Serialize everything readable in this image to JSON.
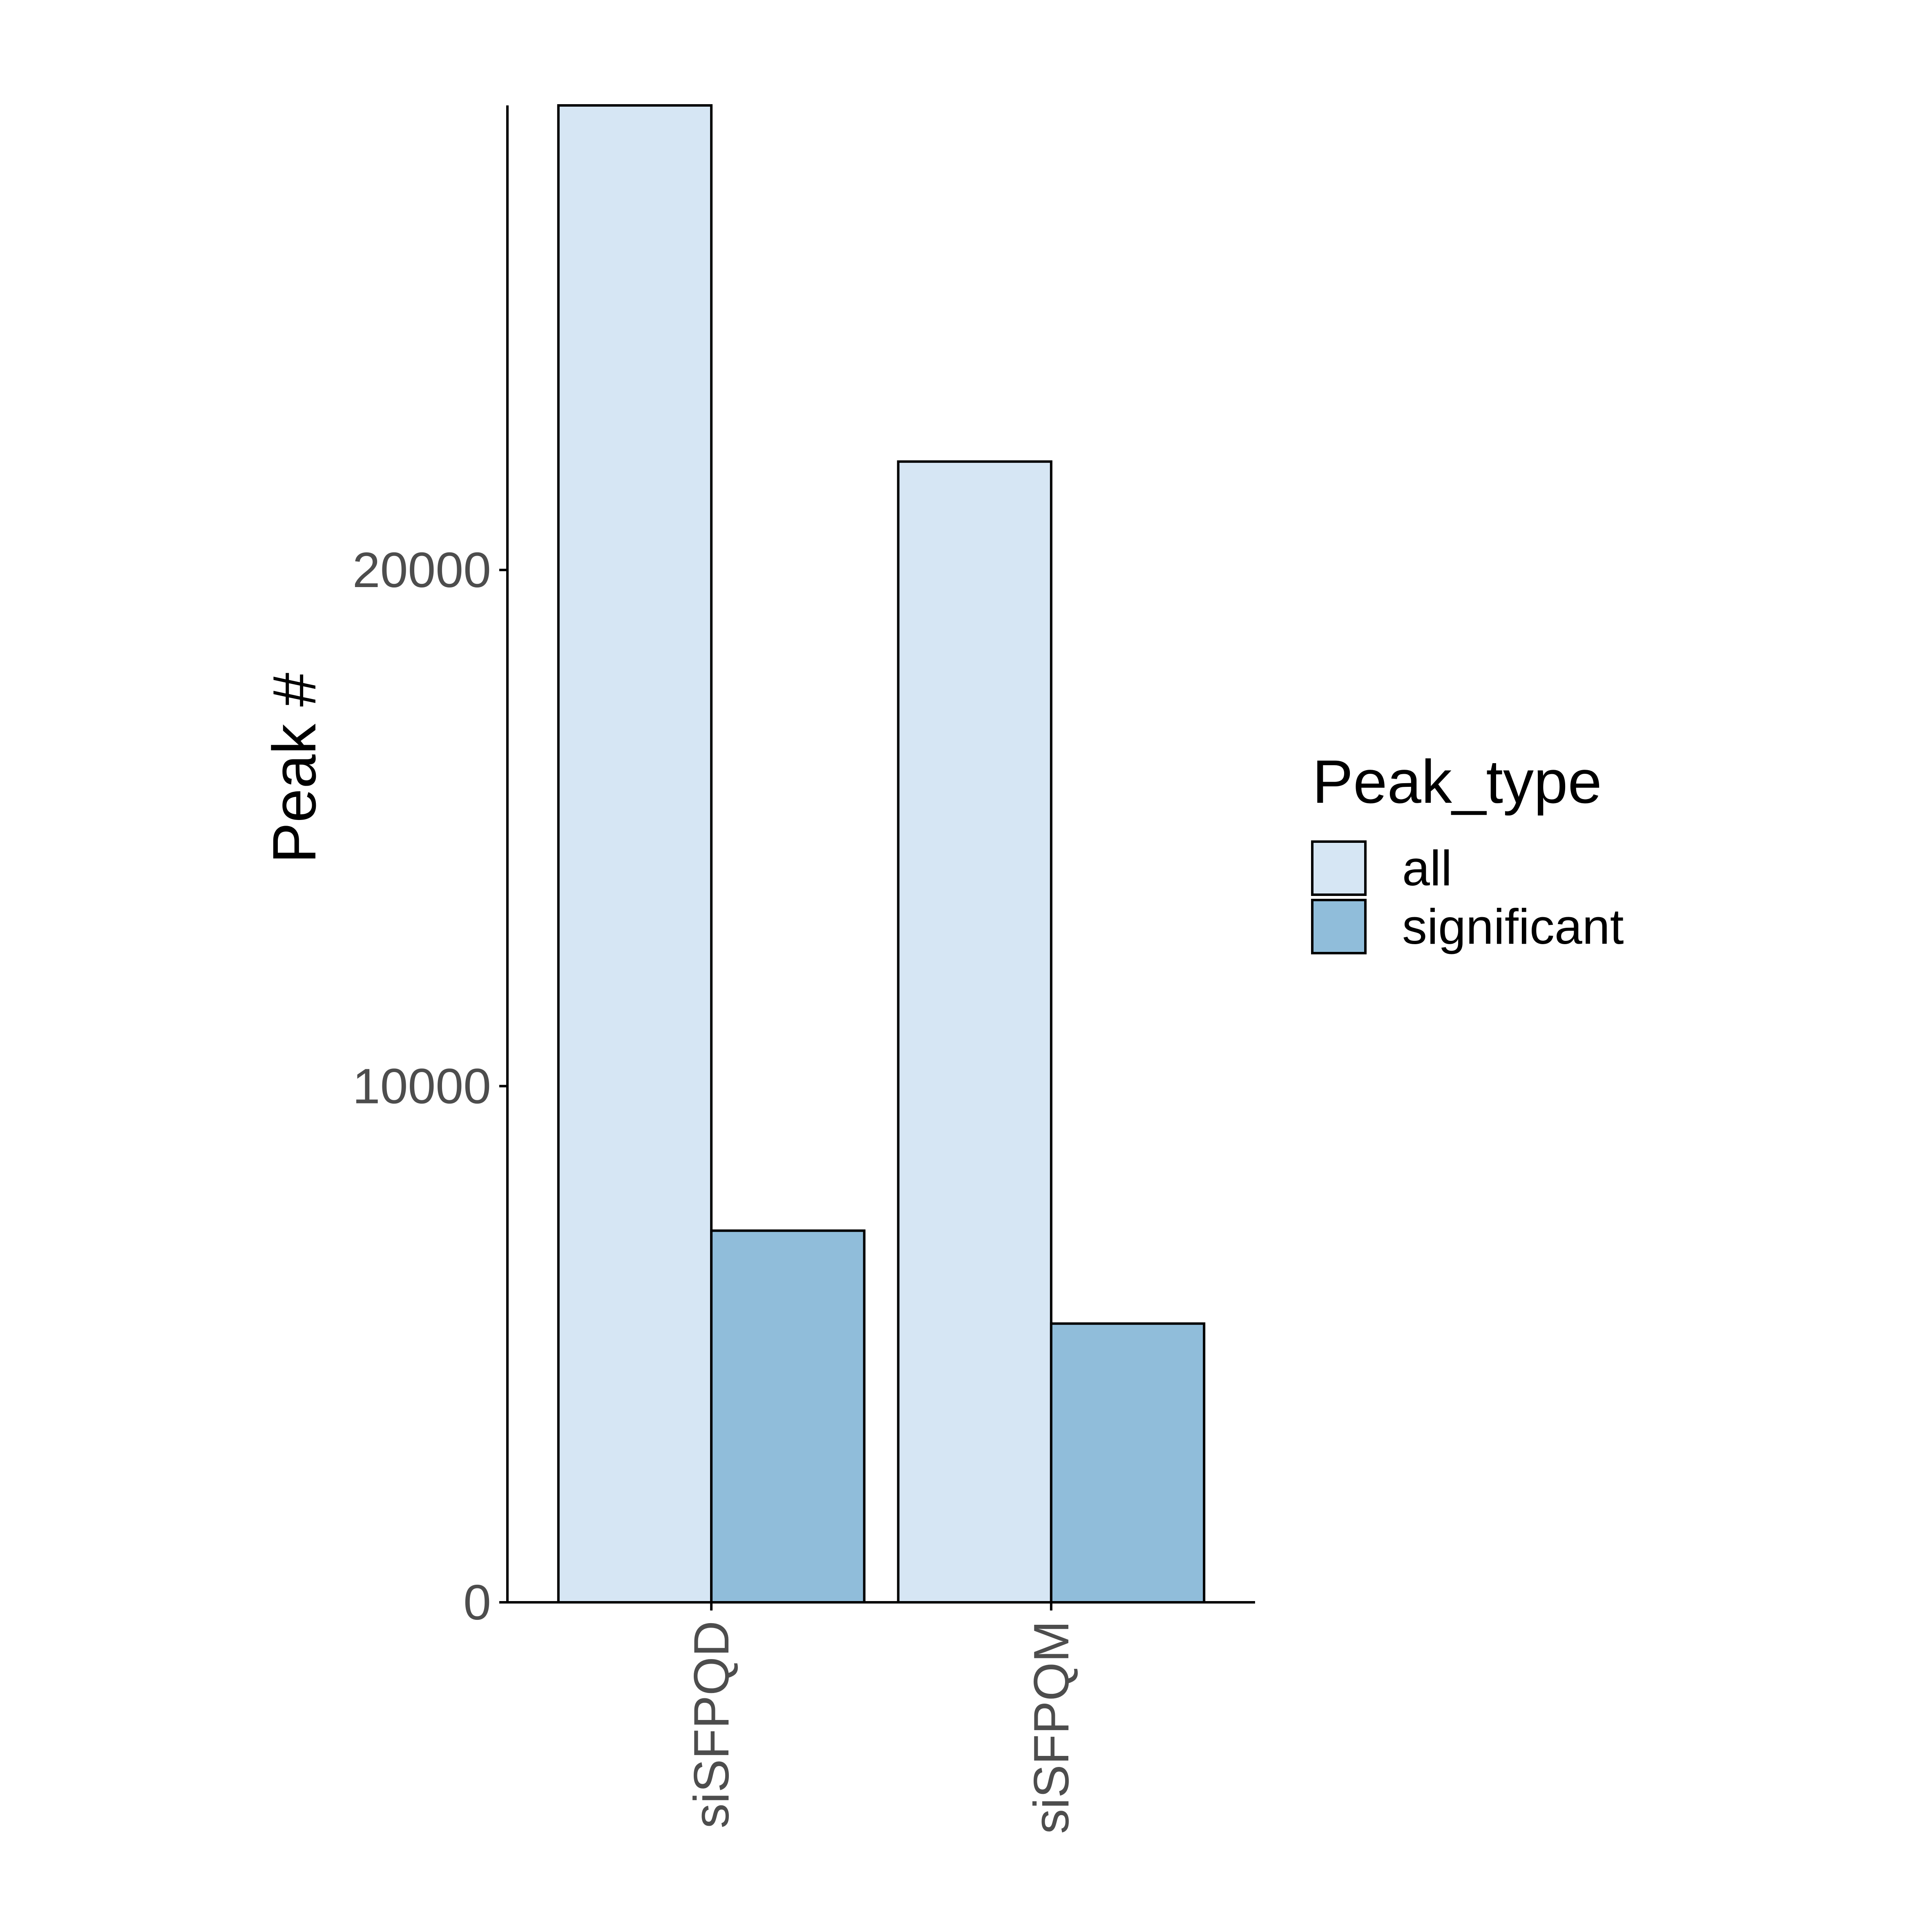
{
  "chart_data": {
    "type": "bar",
    "categories": [
      "siSFPQD",
      "siSFPQM"
    ],
    "series": [
      {
        "name": "all",
        "color": "#d6e6f4",
        "values": [
          29000,
          22100
        ]
      },
      {
        "name": "significant",
        "color": "#90bdda",
        "values": [
          7200,
          5400
        ]
      }
    ],
    "ylabel": "Peak #",
    "xlabel": "",
    "ylim": [
      0,
      29000
    ],
    "yticks": [
      0,
      10000,
      20000
    ],
    "legend": {
      "title": "Peak_type",
      "position": "right"
    },
    "grid": false,
    "colors": {
      "outline": "#000000",
      "tick_text": "#4d4d4d",
      "axis_title": "#000000"
    }
  }
}
